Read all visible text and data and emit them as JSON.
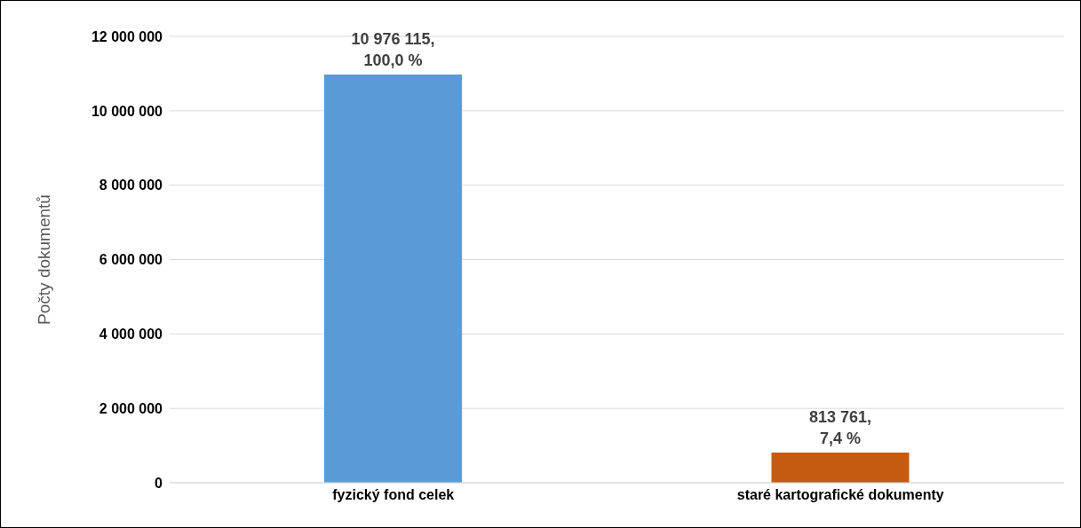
{
  "chart_data": {
    "type": "bar",
    "ylabel": "Počty dokumentů",
    "categories": [
      "fyzický fond celek",
      "staré kartografické dokumenty"
    ],
    "values": [
      10976115,
      813761
    ],
    "colors": [
      "#5b9bd5",
      "#c55a11"
    ],
    "value_labels": [
      "10 976 115,\n100,0 %",
      "813 761,\n7,4 %"
    ],
    "ylim": [
      0,
      12000000
    ],
    "yticks": [
      {
        "value": 0,
        "label": "0"
      },
      {
        "value": 2000000,
        "label": "2 000 000"
      },
      {
        "value": 4000000,
        "label": "4 000 000"
      },
      {
        "value": 6000000,
        "label": "6 000 000"
      },
      {
        "value": 8000000,
        "label": "8 000 000"
      },
      {
        "value": 10000000,
        "label": "10 000 000"
      },
      {
        "value": 12000000,
        "label": "12 000 000"
      }
    ],
    "grid": "y"
  }
}
